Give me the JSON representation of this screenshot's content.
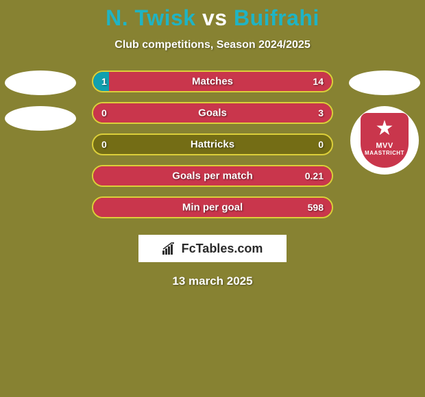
{
  "background_color": "#878232",
  "title": {
    "player1": "N. Twisk",
    "vs": "vs",
    "player2": "Buifrahi",
    "player1_color": "#1fb4c4",
    "vs_color": "#ffffff",
    "player2_color": "#1fb4c4",
    "fontsize": 32
  },
  "subtitle": {
    "text": "Club competitions, Season 2024/2025",
    "color": "#ffffff",
    "fontsize": 16
  },
  "left_side": {
    "avatar_ellipses": 2,
    "ellipse_color": "#ffffff"
  },
  "right_side": {
    "avatar_ellipses": 1,
    "ellipse_color": "#ffffff",
    "club": {
      "badge_bg": "#c9364c",
      "name_top": "MVV",
      "name_bottom": "MAASTRICHT",
      "text_color": "#ffffff"
    }
  },
  "bars": {
    "track_color": "#746d15",
    "border_color": "#dccf3a",
    "fill_left_color": "#10a0af",
    "fill_right_color": "#c9364c",
    "label_color": "#ffffff",
    "value_color": "#ffffff",
    "height": 32,
    "radius": 16,
    "fontsize_label": 15,
    "fontsize_value": 14,
    "rows": [
      {
        "label": "Matches",
        "left_val": "1",
        "right_val": "14",
        "left_pct": 6.7,
        "right_pct": 93.3
      },
      {
        "label": "Goals",
        "left_val": "0",
        "right_val": "3",
        "left_pct": 0,
        "right_pct": 100
      },
      {
        "label": "Hattricks",
        "left_val": "0",
        "right_val": "0",
        "left_pct": 0,
        "right_pct": 0
      },
      {
        "label": "Goals per match",
        "left_val": "",
        "right_val": "0.21",
        "left_pct": 0,
        "right_pct": 100
      },
      {
        "label": "Min per goal",
        "left_val": "",
        "right_val": "598",
        "left_pct": 0,
        "right_pct": 100
      }
    ]
  },
  "watermark": {
    "bg": "#ffffff",
    "text": "FcTables.com",
    "text_color": "#2a2a2a",
    "icon_color": "#2a2a2a"
  },
  "date": {
    "text": "13 march 2025",
    "color": "#ffffff",
    "fontsize": 17
  }
}
